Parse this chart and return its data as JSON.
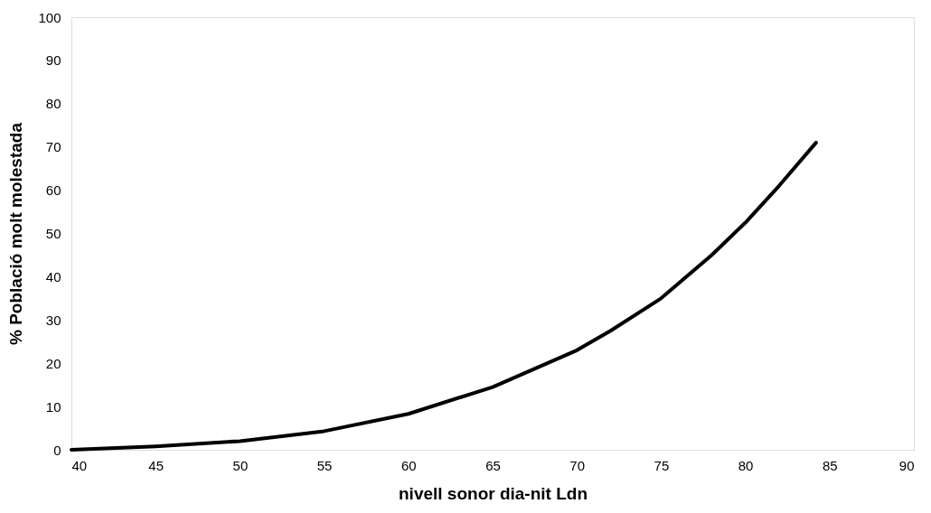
{
  "chart_data": {
    "type": "line",
    "xlabel": "nivell sonor dia-nit Ldn",
    "ylabel": "% Població molt molestada",
    "x": [
      40,
      42,
      45,
      50,
      55,
      60,
      65,
      70,
      72,
      75,
      78,
      80,
      82,
      84.2
    ],
    "series": [
      {
        "color": "#000000",
        "values": [
          0,
          0.3,
          0.8,
          2,
          4.3,
          8.3,
          14.5,
          23,
          27.5,
          35,
          45,
          52.5,
          61,
          71
        ]
      }
    ],
    "xlim": [
      40,
      90
    ],
    "xticks": [
      40,
      45,
      50,
      55,
      60,
      65,
      70,
      75,
      80,
      85,
      90
    ],
    "ylim": [
      0,
      100
    ],
    "yticks": [
      0,
      10,
      20,
      30,
      40,
      50,
      60,
      70,
      80,
      90,
      100
    ],
    "grid": false,
    "marker": "none",
    "line_style": "solid"
  }
}
